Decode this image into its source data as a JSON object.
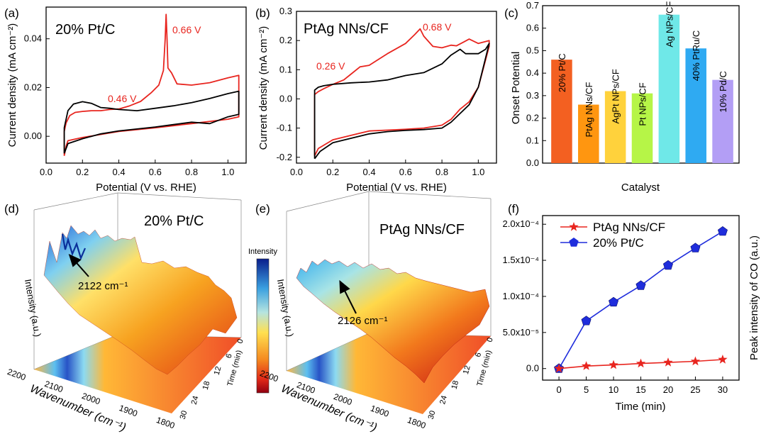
{
  "panel_letters": {
    "a": "(a)",
    "b": "(b)",
    "c": "(c)",
    "d": "(d)",
    "e": "(e)",
    "f": "(f)"
  },
  "colorbar_label": "Intensity",
  "chart_data": [
    {
      "id": "a",
      "type": "line",
      "title": "20% Pt/C",
      "xlabel": "Potential (V vs. RHE)",
      "ylabel": "Current density (mA cm⁻²)",
      "xlim": [
        0.0,
        1.1
      ],
      "ylim": [
        -0.011,
        0.053
      ],
      "xticks": [
        "0.0",
        "0.2",
        "0.4",
        "0.6",
        "0.8",
        "1.0"
      ],
      "yticks": [
        "0.00",
        "0.02",
        "0.04"
      ],
      "annotations": [
        {
          "text": "0.66 V",
          "x": 0.76,
          "y": 0.047
        },
        {
          "text": "0.46 V",
          "x": 0.35,
          "y": 0.0155
        }
      ],
      "series": [
        {
          "color": "#e8251f",
          "points": [
            [
              0.1,
              -0.008
            ],
            [
              0.11,
              -0.004
            ],
            [
              0.12,
              -0.0018
            ],
            [
              0.2,
              -0.0005
            ],
            [
              0.4,
              0.002
            ],
            [
              0.6,
              0.0035
            ],
            [
              0.8,
              0.0052
            ],
            [
              1.0,
              0.007
            ],
            [
              1.06,
              0.008
            ],
            [
              1.06,
              0.025
            ],
            [
              1.0,
              0.024
            ],
            [
              0.9,
              0.022
            ],
            [
              0.8,
              0.021
            ],
            [
              0.72,
              0.0215
            ],
            [
              0.69,
              0.026
            ],
            [
              0.67,
              0.028
            ],
            [
              0.665,
              0.04
            ],
            [
              0.66,
              0.05
            ],
            [
              0.655,
              0.04
            ],
            [
              0.645,
              0.027
            ],
            [
              0.62,
              0.021
            ],
            [
              0.58,
              0.018
            ],
            [
              0.52,
              0.0143
            ],
            [
              0.46,
              0.0125
            ],
            [
              0.4,
              0.0112
            ],
            [
              0.35,
              0.011
            ],
            [
              0.3,
              0.0105
            ],
            [
              0.25,
              0.0105
            ],
            [
              0.2,
              0.0102
            ],
            [
              0.16,
              0.0098
            ],
            [
              0.13,
              0.0085
            ],
            [
              0.11,
              0.0055
            ],
            [
              0.1,
              0.002
            ],
            [
              0.1,
              -0.008
            ]
          ]
        },
        {
          "color": "#000000",
          "points": [
            [
              0.1,
              -0.007
            ],
            [
              0.12,
              -0.003
            ],
            [
              0.2,
              -0.001
            ],
            [
              0.3,
              0.001
            ],
            [
              0.4,
              0.0022
            ],
            [
              0.5,
              0.003
            ],
            [
              0.6,
              0.0038
            ],
            [
              0.7,
              0.0048
            ],
            [
              0.8,
              0.0058
            ],
            [
              0.9,
              0.0052
            ],
            [
              1.0,
              0.008
            ],
            [
              1.06,
              0.009
            ],
            [
              1.06,
              0.0185
            ],
            [
              1.0,
              0.0175
            ],
            [
              0.9,
              0.0155
            ],
            [
              0.8,
              0.0138
            ],
            [
              0.7,
              0.0125
            ],
            [
              0.6,
              0.0115
            ],
            [
              0.5,
              0.0105
            ],
            [
              0.4,
              0.011
            ],
            [
              0.35,
              0.0115
            ],
            [
              0.3,
              0.0118
            ],
            [
              0.25,
              0.0135
            ],
            [
              0.2,
              0.0142
            ],
            [
              0.15,
              0.0132
            ],
            [
              0.12,
              0.0105
            ],
            [
              0.1,
              0.0035
            ],
            [
              0.1,
              -0.007
            ]
          ]
        }
      ]
    },
    {
      "id": "b",
      "type": "line",
      "title": "PtAg NNs/CF",
      "xlabel": "Potential (V vs. RHE)",
      "ylabel": "Current density (mA cm⁻²)",
      "xlim": [
        0.0,
        1.1
      ],
      "ylim": [
        -0.22,
        0.3
      ],
      "xticks": [
        "0.0",
        "0.2",
        "0.4",
        "0.6",
        "0.8",
        "1.0"
      ],
      "yticks": [
        "-0.2",
        "-0.1",
        "0.0",
        "0.1",
        "0.2",
        "0.3"
      ],
      "annotations": [
        {
          "text": "0.68 V",
          "x": 0.64,
          "y": 0.255
        },
        {
          "text": "0.26 V",
          "x": 0.16,
          "y": 0.1
        }
      ],
      "series": [
        {
          "color": "#e8251f",
          "points": [
            [
              0.1,
              -0.195
            ],
            [
              0.12,
              -0.17
            ],
            [
              0.2,
              -0.14
            ],
            [
              0.3,
              -0.125
            ],
            [
              0.4,
              -0.11
            ],
            [
              0.5,
              -0.107
            ],
            [
              0.6,
              -0.104
            ],
            [
              0.7,
              -0.1
            ],
            [
              0.8,
              -0.09
            ],
            [
              0.85,
              -0.07
            ],
            [
              0.9,
              -0.035
            ],
            [
              0.95,
              -0.01
            ],
            [
              1.0,
              0.04
            ],
            [
              1.06,
              0.18
            ],
            [
              1.06,
              0.2
            ],
            [
              1.0,
              0.19
            ],
            [
              0.95,
              0.205
            ],
            [
              0.92,
              0.195
            ],
            [
              0.88,
              0.182
            ],
            [
              0.85,
              0.184
            ],
            [
              0.8,
              0.175
            ],
            [
              0.75,
              0.18
            ],
            [
              0.7,
              0.215
            ],
            [
              0.68,
              0.24
            ],
            [
              0.65,
              0.22
            ],
            [
              0.6,
              0.19
            ],
            [
              0.5,
              0.155
            ],
            [
              0.45,
              0.135
            ],
            [
              0.4,
              0.115
            ],
            [
              0.35,
              0.11
            ],
            [
              0.3,
              0.085
            ],
            [
              0.26,
              0.065
            ],
            [
              0.2,
              0.05
            ],
            [
              0.15,
              0.035
            ],
            [
              0.12,
              0.025
            ],
            [
              0.1,
              0.015
            ],
            [
              0.1,
              -0.195
            ]
          ]
        },
        {
          "color": "#000000",
          "points": [
            [
              0.1,
              -0.205
            ],
            [
              0.13,
              -0.18
            ],
            [
              0.2,
              -0.15
            ],
            [
              0.3,
              -0.135
            ],
            [
              0.4,
              -0.12
            ],
            [
              0.5,
              -0.112
            ],
            [
              0.6,
              -0.108
            ],
            [
              0.7,
              -0.105
            ],
            [
              0.8,
              -0.1
            ],
            [
              0.85,
              -0.08
            ],
            [
              0.9,
              -0.05
            ],
            [
              0.95,
              -0.02
            ],
            [
              1.0,
              0.04
            ],
            [
              1.06,
              0.19
            ],
            [
              1.04,
              0.17
            ],
            [
              1.0,
              0.155
            ],
            [
              0.93,
              0.155
            ],
            [
              0.9,
              0.17
            ],
            [
              0.85,
              0.15
            ],
            [
              0.8,
              0.12
            ],
            [
              0.7,
              0.09
            ],
            [
              0.6,
              0.08
            ],
            [
              0.5,
              0.065
            ],
            [
              0.4,
              0.058
            ],
            [
              0.3,
              0.055
            ],
            [
              0.2,
              0.05
            ],
            [
              0.15,
              0.045
            ],
            [
              0.12,
              0.04
            ],
            [
              0.1,
              0.03
            ],
            [
              0.1,
              -0.205
            ]
          ]
        }
      ]
    },
    {
      "id": "c",
      "type": "bar",
      "xlabel": "Catalyst",
      "ylabel": "Onset Potential",
      "ylim": [
        0.0,
        0.7
      ],
      "yticks": [
        "0.0",
        "0.1",
        "0.2",
        "0.3",
        "0.4",
        "0.5",
        "0.6",
        "0.7"
      ],
      "categories": [
        "20% Pt/C",
        "PtAg NNs/CF",
        "AgPt NPs/CF",
        "Pt NPs/CF",
        "Ag NPs/CF",
        "40% PtRu/C",
        "10% Pd/C"
      ],
      "values": [
        0.46,
        0.26,
        0.32,
        0.31,
        0.66,
        0.51,
        0.37
      ],
      "colors": [
        "#f36021",
        "#ff9610",
        "#ffd23c",
        "#b6f547",
        "#6fe8e8",
        "#2faaf2",
        "#b39ef5"
      ]
    },
    {
      "id": "d",
      "type": "surface3d",
      "title": "20% Pt/C",
      "xlabel": "Wavenumber (cm⁻¹)",
      "ylabel": "Time (min)",
      "zlabel": "Intensity (a.u.)",
      "xticks": [
        "2200",
        "2100",
        "2000",
        "1900",
        "1800"
      ],
      "yticks": [
        "0",
        "6",
        "12",
        "18",
        "24",
        "30"
      ],
      "annotations": [
        {
          "text": "2122 cm⁻¹"
        }
      ]
    },
    {
      "id": "e",
      "type": "surface3d",
      "title": "PtAg NNs/CF",
      "xlabel": "Wavenumber (cm⁻¹)",
      "ylabel": "Time (min)",
      "zlabel": "Intensity (a.u.)",
      "xticks": [
        "2200",
        "2100",
        "2000",
        "1900",
        "1800"
      ],
      "yticks": [
        "0",
        "6",
        "12",
        "18",
        "24",
        "30"
      ],
      "annotations": [
        {
          "text": "2126 cm⁻¹"
        }
      ]
    },
    {
      "id": "f",
      "type": "line",
      "xlabel": "Time (min)",
      "ylabel": "Peak intensity of CO (a.u.)",
      "xlim": [
        -3,
        33
      ],
      "ylim": [
        -1.6e-05,
        0.000212
      ],
      "xticks": [
        "0",
        "5",
        "10",
        "15",
        "20",
        "25",
        "30"
      ],
      "yticks": [
        "0.0",
        "5.0x10⁻⁵",
        "1.0x10⁻⁴",
        "1.5x10⁻⁴",
        "2.0x10⁻⁴"
      ],
      "x": [
        0,
        5,
        10,
        15,
        20,
        25,
        30
      ],
      "series": [
        {
          "name": "PtAg NNs/CF",
          "color": "#e8251f",
          "marker": "star",
          "values": [
            0.0,
            3.5e-06,
            5e-06,
            7e-06,
            8.5e-06,
            1e-05,
            1.25e-05
          ]
        },
        {
          "name": "20% Pt/C",
          "color": "#1f2ddc",
          "marker": "pentagon",
          "values": [
            0.0,
            6.6e-05,
            9.2e-05,
            0.000115,
            0.000143,
            0.000167,
            0.00019
          ]
        }
      ]
    }
  ]
}
